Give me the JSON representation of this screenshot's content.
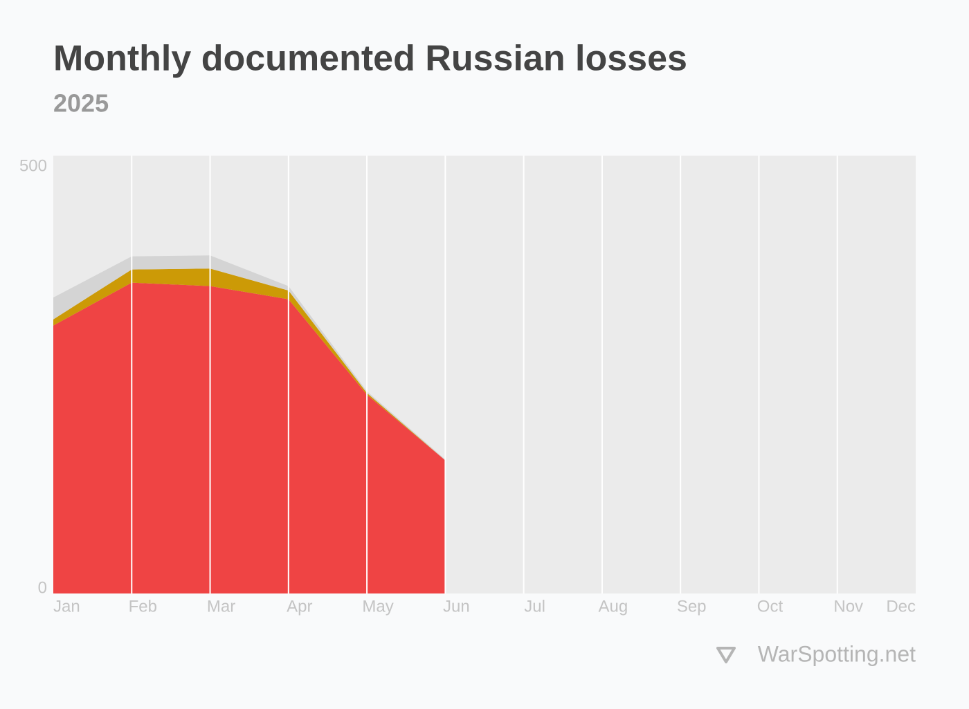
{
  "chart_data": {
    "type": "stacked_area",
    "title": "Monthly documented Russian losses",
    "subtitle": "2025",
    "categories": [
      "Jan",
      "Feb",
      "Mar",
      "Apr",
      "May",
      "Jun",
      "Jul",
      "Aug",
      "Sep",
      "Oct",
      "Nov",
      "Dec"
    ],
    "series": [
      {
        "color": "#ef4444",
        "values": [
          306,
          355,
          351,
          336,
          227,
          152,
          null,
          null,
          null,
          null,
          null,
          null
        ]
      },
      {
        "color": "#cc9a06",
        "values": [
          7,
          15,
          20,
          10,
          2,
          0,
          null,
          null,
          null,
          null,
          null,
          null
        ]
      },
      {
        "color": "#d4d4d4",
        "values": [
          25,
          15,
          15,
          5,
          2,
          1,
          null,
          null,
          null,
          null,
          null,
          null
        ]
      }
    ],
    "ylim": [
      0,
      500
    ],
    "yticks": [
      0,
      500
    ],
    "grid": true,
    "source": "WarSpotting.net"
  }
}
